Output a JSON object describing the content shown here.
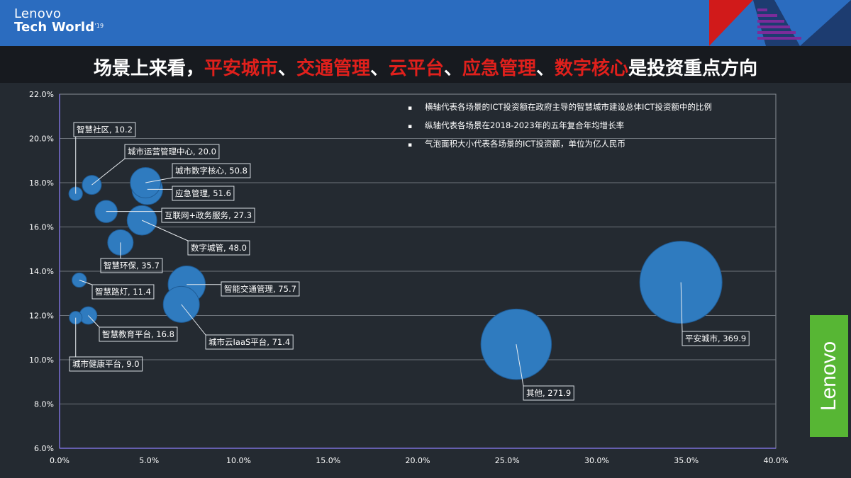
{
  "header": {
    "logo_line1": "Lenovo",
    "logo_line2": "Tech World",
    "logo_sup": "'19"
  },
  "title": {
    "prefix": "场景上来看，",
    "h1": "平安城市",
    "sep1": "、",
    "h2": "交通管理",
    "sep2": "、",
    "h3": "云平台",
    "sep3": "、",
    "h4": "应急管理",
    "sep4": "、",
    "h5": "数字核心",
    "suffix": "是投资重点方向"
  },
  "annotations": [
    "横轴代表各场景的ICT投资额在政府主导的智慧城市建设总体ICT投资额中的比例",
    "纵轴代表各场景在2018-2023年的五年复合年均增长率",
    "气泡面积大小代表各场景的ICT投资额，单位为亿人民币"
  ],
  "brand": "Lenovo",
  "colors": {
    "bubble": "#2f7bbf",
    "highlight": "#e0201c",
    "brand_green": "#57b634"
  },
  "chart_data": {
    "type": "bubble",
    "xlim": [
      0,
      40
    ],
    "ylim": [
      6,
      22
    ],
    "x_ticks": [
      "0.0%",
      "5.0%",
      "10.0%",
      "15.0%",
      "20.0%",
      "25.0%",
      "30.0%",
      "35.0%",
      "40.0%"
    ],
    "y_ticks": [
      "6.0%",
      "8.0%",
      "10.0%",
      "12.0%",
      "14.0%",
      "16.0%",
      "18.0%",
      "20.0%",
      "22.0%"
    ],
    "points": [
      {
        "label": "智慧社区, 10.2",
        "x": 0.9,
        "y": 17.5,
        "size": 10.2
      },
      {
        "label": "城市运营管理中心, 20.0",
        "x": 1.8,
        "y": 17.9,
        "size": 20.0
      },
      {
        "label": "城市数字核心, 50.8",
        "x": 4.8,
        "y": 18.0,
        "size": 50.8
      },
      {
        "label": "应急管理, 51.6",
        "x": 4.9,
        "y": 17.7,
        "size": 51.6
      },
      {
        "label": "互联网+政务服务, 27.3",
        "x": 2.6,
        "y": 16.7,
        "size": 27.3
      },
      {
        "label": "数字城管, 48.0",
        "x": 4.6,
        "y": 16.3,
        "size": 48.0
      },
      {
        "label": "智慧环保, 35.7",
        "x": 3.4,
        "y": 15.3,
        "size": 35.7
      },
      {
        "label": "智慧路灯, 11.4",
        "x": 1.1,
        "y": 13.6,
        "size": 11.4
      },
      {
        "label": "智能交通管理, 75.7",
        "x": 7.1,
        "y": 13.4,
        "size": 75.7
      },
      {
        "label": "城市云IaaS平台, 71.4",
        "x": 6.8,
        "y": 12.5,
        "size": 71.4
      },
      {
        "label": "智慧教育平台, 16.8",
        "x": 1.6,
        "y": 12.0,
        "size": 16.8
      },
      {
        "label": "城市健康平台, 9.0",
        "x": 0.9,
        "y": 11.9,
        "size": 9.0
      },
      {
        "label": "平安城市, 369.9",
        "x": 34.7,
        "y": 13.5,
        "size": 369.9
      },
      {
        "label": "其他, 271.9",
        "x": 25.5,
        "y": 10.7,
        "size": 271.9
      }
    ]
  }
}
